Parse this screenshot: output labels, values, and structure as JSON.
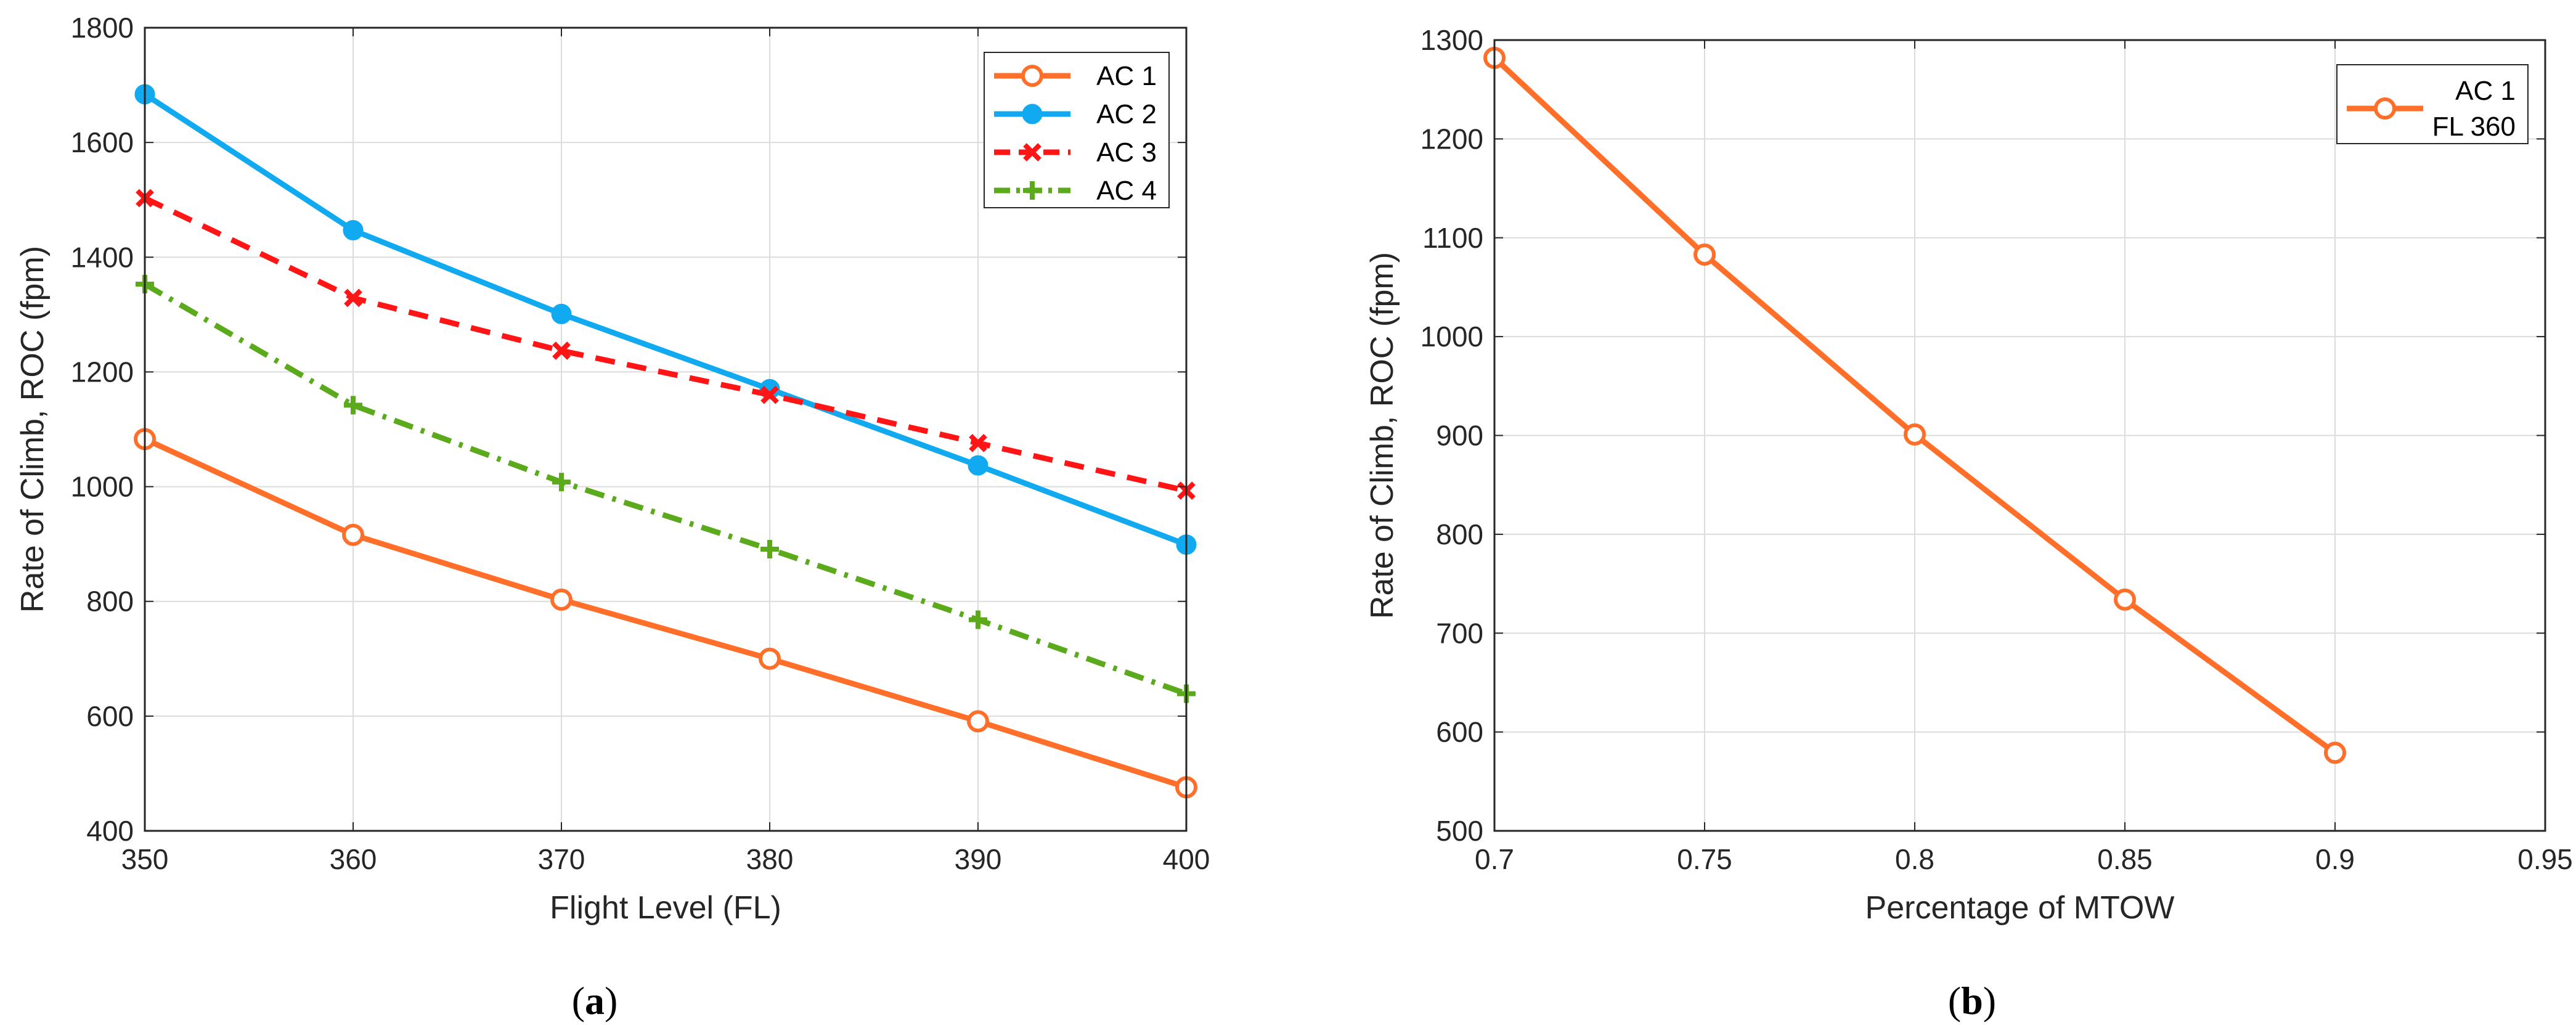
{
  "chart_data": [
    {
      "id": "a",
      "type": "line",
      "caption_open": "(",
      "caption_letter": "a",
      "caption_close": ")",
      "xlabel": "Flight Level (FL)",
      "ylabel": "Rate of Climb, ROC (fpm)",
      "xlim": [
        350,
        400
      ],
      "ylim": [
        400,
        1800
      ],
      "xticks": [
        350,
        360,
        370,
        380,
        390,
        400
      ],
      "yticks": [
        400,
        600,
        800,
        1000,
        1200,
        1400,
        1600,
        1800
      ],
      "grid": true,
      "legend_position": "top-right",
      "x": [
        350,
        360,
        370,
        380,
        390,
        400
      ],
      "series": [
        {
          "name": "AC 1",
          "label_lines": [
            "AC 1"
          ],
          "color": "#FF6F2A",
          "dash": "solid",
          "marker": "circle-open",
          "values": [
            1083,
            916,
            803,
            700,
            591,
            476
          ]
        },
        {
          "name": "AC 2",
          "label_lines": [
            "AC 2"
          ],
          "color": "#11AAF0",
          "dash": "solid",
          "marker": "circle-filled",
          "values": [
            1684,
            1447,
            1301,
            1170,
            1037,
            899
          ]
        },
        {
          "name": "AC 3",
          "label_lines": [
            "AC 3"
          ],
          "color": "#FF1515",
          "dash": "dashed",
          "marker": "x",
          "values": [
            1503,
            1329,
            1237,
            1160,
            1076,
            993
          ]
        },
        {
          "name": "AC 4",
          "label_lines": [
            "AC 4"
          ],
          "color": "#5BAA1C",
          "dash": "dashdot",
          "marker": "plus",
          "values": [
            1353,
            1142,
            1008,
            891,
            768,
            639
          ]
        }
      ]
    },
    {
      "id": "b",
      "type": "line",
      "caption_open": "(",
      "caption_letter": "b",
      "caption_close": ")",
      "xlabel": "Percentage of MTOW",
      "ylabel": "Rate of Climb, ROC (fpm)",
      "xlim": [
        0.7,
        0.95
      ],
      "ylim": [
        500,
        1300
      ],
      "xticks": [
        0.7,
        0.75,
        0.8,
        0.85,
        0.9,
        0.95
      ],
      "yticks": [
        500,
        600,
        700,
        800,
        900,
        1000,
        1100,
        1200,
        1300
      ],
      "grid": true,
      "legend_position": "top-right",
      "x": [
        0.7,
        0.75,
        0.8,
        0.85,
        0.9
      ],
      "series": [
        {
          "name": "AC 1 FL 360",
          "label_lines": [
            "AC 1",
            "FL 360"
          ],
          "color": "#FF6F2A",
          "dash": "solid",
          "marker": "circle-open",
          "values": [
            1282,
            1083,
            901,
            734,
            579
          ]
        }
      ]
    }
  ]
}
